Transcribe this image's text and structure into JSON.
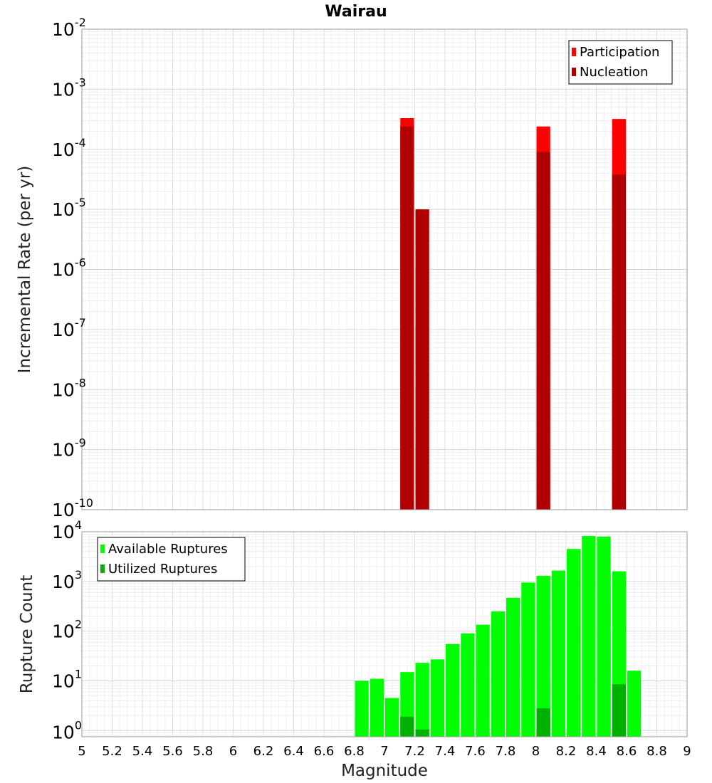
{
  "chart_data": [
    {
      "type": "bar",
      "title": "Wairau",
      "ylabel": "Incremental Rate (per yr)",
      "yscale": "log",
      "ylim": [
        1e-10,
        0.01
      ],
      "xlim": [
        5,
        9
      ],
      "bin_width": 0.1,
      "grid": true,
      "legend_position": "top-right",
      "y_tick_labels": [
        {
          "base": "10",
          "exp": "-10"
        },
        {
          "base": "10",
          "exp": "-9"
        },
        {
          "base": "10",
          "exp": "-8"
        },
        {
          "base": "10",
          "exp": "-7"
        },
        {
          "base": "10",
          "exp": "-6"
        },
        {
          "base": "10",
          "exp": "-5"
        },
        {
          "base": "10",
          "exp": "-4"
        },
        {
          "base": "10",
          "exp": "-3"
        },
        {
          "base": "10",
          "exp": "-2"
        }
      ],
      "series": [
        {
          "name": "Participation",
          "color": "#ff0000",
          "x": [
            7.15,
            8.05,
            8.55
          ],
          "values": [
            0.00033,
            0.00024,
            0.00032
          ]
        },
        {
          "name": "Nucleation",
          "color": "#b00000",
          "x": [
            7.15,
            7.25,
            8.05,
            8.55
          ],
          "values": [
            0.00024,
            1e-05,
            9e-05,
            3.8e-05
          ]
        }
      ]
    },
    {
      "type": "bar",
      "xlabel": "Magnitude",
      "ylabel": "Rupture Count",
      "yscale": "log",
      "ylim": [
        0.75,
        10000
      ],
      "xlim": [
        5,
        9
      ],
      "bin_width": 0.1,
      "grid": true,
      "legend_position": "top-left",
      "x_tick_labels": [
        "5",
        "5.2",
        "5.4",
        "5.6",
        "5.8",
        "6",
        "6.2",
        "6.4",
        "6.6",
        "6.8",
        "7",
        "7.2",
        "7.4",
        "7.6",
        "7.8",
        "8",
        "8.2",
        "8.4",
        "8.6",
        "8.8",
        "9"
      ],
      "y_tick_labels": [
        {
          "base": "10",
          "exp": "0"
        },
        {
          "base": "10",
          "exp": "1"
        },
        {
          "base": "10",
          "exp": "2"
        },
        {
          "base": "10",
          "exp": "3"
        },
        {
          "base": "10",
          "exp": "4"
        }
      ],
      "series": [
        {
          "name": "Available Ruptures",
          "color": "#00ff00",
          "x": [
            6.85,
            6.95,
            7.05,
            7.15,
            7.25,
            7.35,
            7.45,
            7.55,
            7.65,
            7.75,
            7.85,
            7.95,
            8.05,
            8.15,
            8.25,
            8.35,
            8.45,
            8.55,
            8.65
          ],
          "values": [
            10,
            11,
            4.5,
            15,
            23,
            27,
            55,
            90,
            135,
            250,
            470,
            950,
            1300,
            1650,
            4500,
            8200,
            8000,
            1600,
            16
          ]
        },
        {
          "name": "Utilized Ruptures",
          "color": "#00b000",
          "x": [
            7.15,
            7.25,
            8.05,
            8.55
          ],
          "values": [
            1.9,
            1.05,
            2.8,
            8.5
          ]
        }
      ]
    }
  ]
}
